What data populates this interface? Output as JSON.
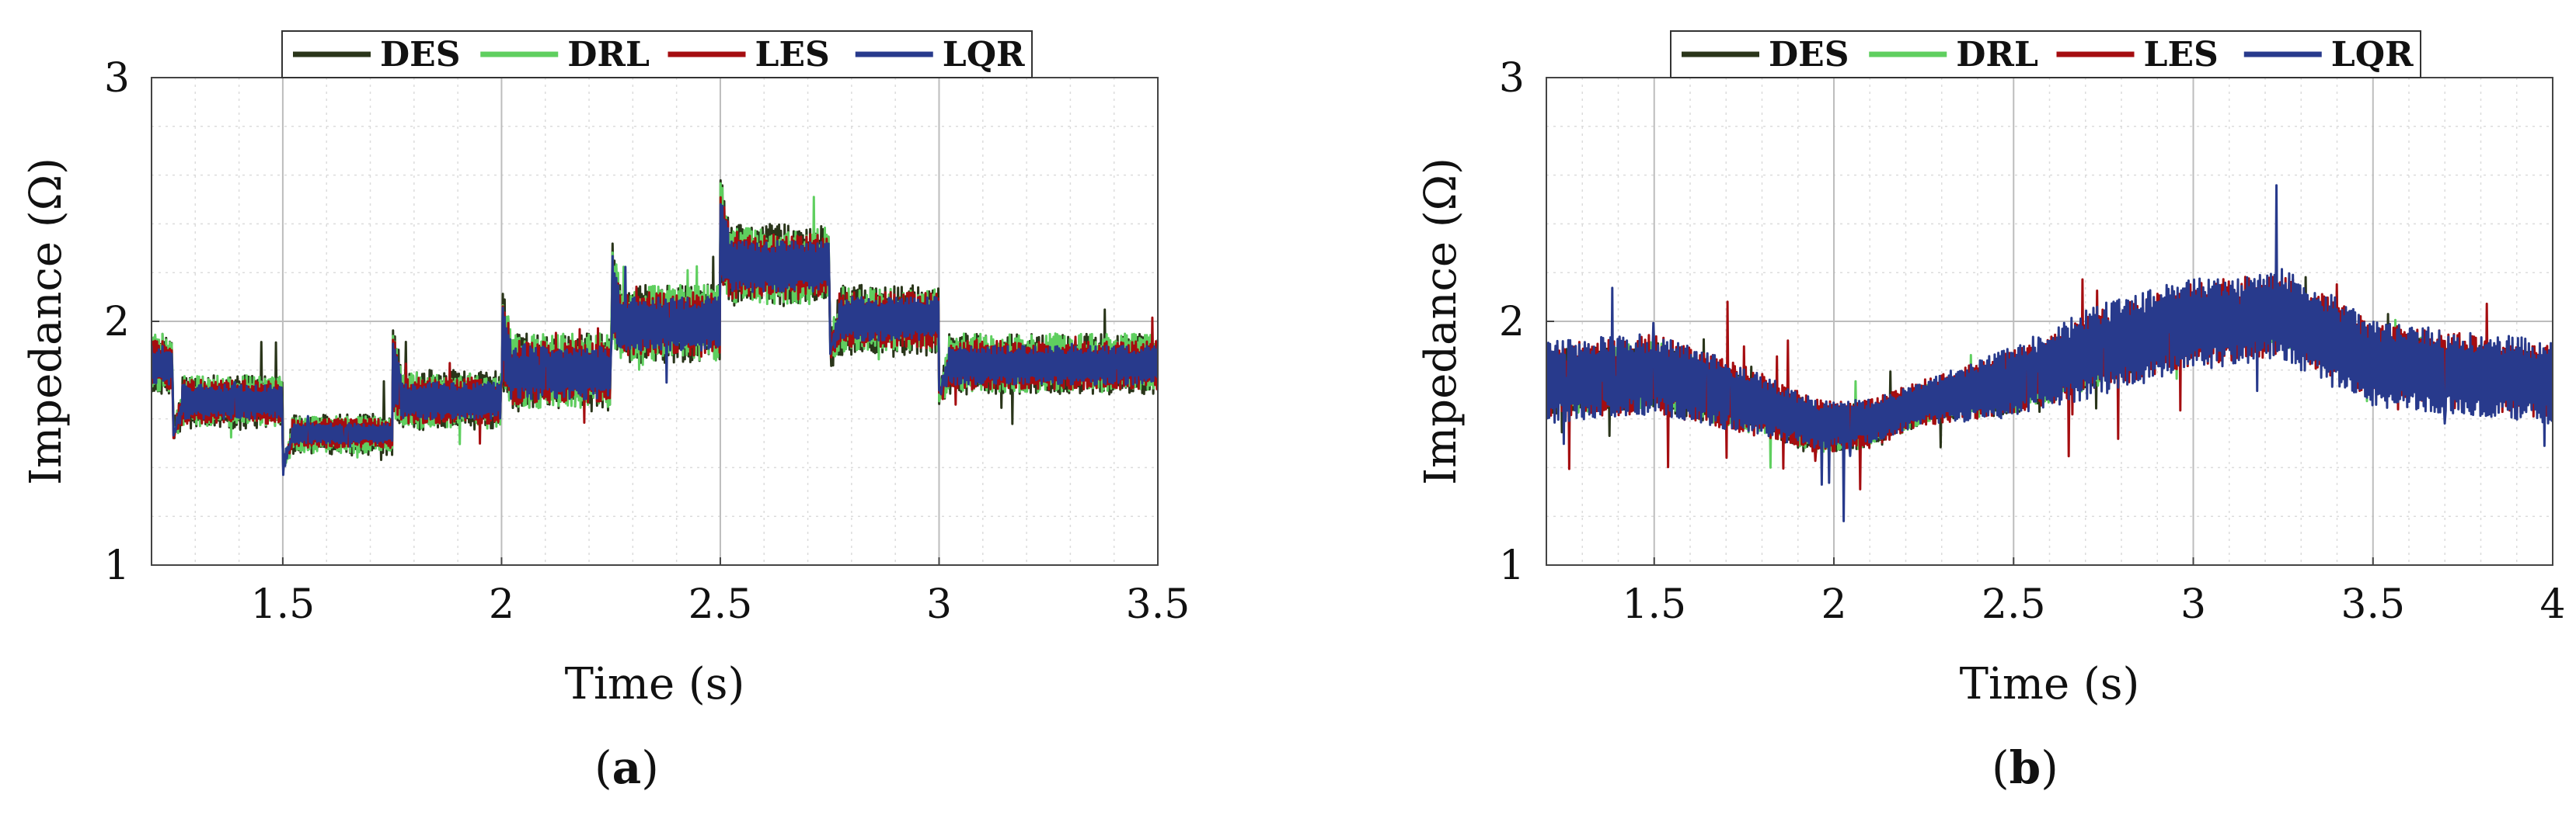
{
  "colors": {
    "DES": "#2a351a",
    "DRL": "#5fcf5f",
    "LES": "#a50d10",
    "LQR": "#283a8c",
    "grid_major": "#bdbdbd",
    "grid_minor": "#dcdcdc"
  },
  "captions": [
    "a",
    "b"
  ],
  "chart_data": [
    {
      "type": "line",
      "panel": "a",
      "xlabel": "Time (s)",
      "ylabel": "Impedance (Ω)",
      "xlim": [
        1.2,
        3.5
      ],
      "ylim": [
        1,
        3
      ],
      "xticks": [
        1.5,
        2,
        2.5,
        3,
        3.5
      ],
      "xtick_labels": [
        "1.5",
        "2",
        "2.5",
        "3",
        "3.5"
      ],
      "yticks": [
        1,
        2,
        3
      ],
      "ytick_labels": [
        "1",
        "2",
        "3"
      ],
      "grid": true,
      "minor_grid": true,
      "legend": {
        "placement": "top-center",
        "orientation": "horizontal",
        "entries": [
          "DES",
          "DRL",
          "LES",
          "LQR"
        ]
      },
      "profile": {
        "x": [
          1.2,
          1.25,
          1.5,
          1.75,
          2.0,
          2.25,
          2.5,
          2.75,
          3.0,
          3.5
        ],
        "low": [
          1.72,
          1.58,
          1.47,
          1.56,
          1.65,
          1.85,
          2.07,
          1.88,
          1.71,
          1.71
        ],
        "high": [
          1.93,
          1.76,
          1.6,
          1.78,
          1.93,
          2.13,
          2.38,
          2.13,
          1.93,
          1.93
        ]
      },
      "series": [
        {
          "name": "DES",
          "low": [
            1.7,
            1.56,
            1.45,
            1.55,
            1.63,
            1.83,
            2.06,
            1.86,
            1.7,
            1.7
          ],
          "high": [
            1.95,
            1.78,
            1.62,
            1.8,
            1.95,
            2.15,
            2.4,
            2.15,
            1.95,
            1.95
          ],
          "spike": 0.18,
          "noise": 0.6
        },
        {
          "name": "DRL",
          "low": [
            1.71,
            1.57,
            1.46,
            1.56,
            1.64,
            1.84,
            2.07,
            1.87,
            1.71,
            1.71
          ],
          "high": [
            1.95,
            1.78,
            1.61,
            1.79,
            1.95,
            2.15,
            2.39,
            2.14,
            1.95,
            1.95
          ],
          "spike": 0.15,
          "noise": 0.6
        },
        {
          "name": "LES",
          "low": [
            1.72,
            1.58,
            1.48,
            1.58,
            1.66,
            1.86,
            2.09,
            1.89,
            1.72,
            1.72
          ],
          "high": [
            1.92,
            1.76,
            1.6,
            1.77,
            1.92,
            2.12,
            2.36,
            2.12,
            1.92,
            1.92
          ],
          "spike": 0.12,
          "noise": 0.6
        },
        {
          "name": "LQR",
          "low": [
            1.74,
            1.6,
            1.5,
            1.6,
            1.68,
            1.88,
            2.12,
            1.92,
            1.74,
            1.74
          ],
          "high": [
            1.9,
            1.74,
            1.58,
            1.75,
            1.9,
            2.1,
            2.33,
            2.1,
            1.9,
            1.9
          ],
          "spike": 0.14,
          "noise": 0.55
        }
      ]
    },
    {
      "type": "line",
      "panel": "b",
      "xlabel": "Time (s)",
      "ylabel": "Impedance (Ω)",
      "xlim": [
        1.2,
        4
      ],
      "ylim": [
        1,
        3
      ],
      "xticks": [
        1.5,
        2,
        2.5,
        3,
        3.5,
        4
      ],
      "xtick_labels": [
        "1.5",
        "2",
        "2.5",
        "3",
        "3.5",
        "4"
      ],
      "yticks": [
        1,
        2,
        3
      ],
      "ytick_labels": [
        "1",
        "2",
        "3"
      ],
      "grid": true,
      "minor_grid": true,
      "legend": {
        "placement": "top-center",
        "orientation": "horizontal",
        "entries": [
          "DES",
          "DRL",
          "LES",
          "LQR"
        ]
      },
      "series": [
        {
          "name": "DES",
          "x": [
            1.2,
            1.5,
            1.75,
            1.95,
            2.1,
            2.25,
            2.5,
            2.75,
            3.0,
            3.25,
            3.35,
            3.5,
            4.0
          ],
          "low": [
            1.62,
            1.64,
            1.55,
            1.45,
            1.48,
            1.58,
            1.62,
            1.74,
            1.9,
            1.92,
            1.84,
            1.72,
            1.64
          ],
          "high": [
            1.88,
            1.92,
            1.78,
            1.66,
            1.66,
            1.74,
            1.85,
            1.98,
            2.1,
            2.12,
            2.05,
            1.96,
            1.86
          ],
          "spike": 0.14
        },
        {
          "name": "DRL",
          "x": [
            1.2,
            1.5,
            1.75,
            1.95,
            2.1,
            2.25,
            2.5,
            2.75,
            3.0,
            3.25,
            3.35,
            3.5,
            4.0
          ],
          "low": [
            1.62,
            1.64,
            1.55,
            1.46,
            1.48,
            1.58,
            1.62,
            1.74,
            1.88,
            1.9,
            1.84,
            1.72,
            1.64
          ],
          "high": [
            1.88,
            1.92,
            1.78,
            1.66,
            1.66,
            1.74,
            1.85,
            1.98,
            2.08,
            2.1,
            2.05,
            1.96,
            1.86
          ],
          "spike": 0.14
        },
        {
          "name": "LES",
          "x": [
            1.2,
            1.5,
            1.75,
            1.95,
            2.1,
            2.25,
            2.5,
            2.75,
            3.0,
            3.25,
            3.35,
            3.5,
            4.0
          ],
          "low": [
            1.6,
            1.62,
            1.54,
            1.46,
            1.48,
            1.57,
            1.62,
            1.72,
            1.82,
            1.86,
            1.8,
            1.68,
            1.6
          ],
          "high": [
            1.9,
            1.95,
            1.82,
            1.68,
            1.68,
            1.76,
            1.88,
            2.05,
            2.16,
            2.2,
            2.12,
            2.0,
            1.9
          ],
          "spike": 0.26
        },
        {
          "name": "LQR",
          "x": [
            1.2,
            1.5,
            1.75,
            1.95,
            2.1,
            2.25,
            2.5,
            2.75,
            3.0,
            3.25,
            3.35,
            3.5,
            4.0
          ],
          "low": [
            1.58,
            1.62,
            1.54,
            1.48,
            1.5,
            1.58,
            1.6,
            1.7,
            1.8,
            1.84,
            1.76,
            1.64,
            1.58
          ],
          "high": [
            1.92,
            1.95,
            1.82,
            1.68,
            1.68,
            1.76,
            1.9,
            2.08,
            2.18,
            2.22,
            2.14,
            2.0,
            1.92
          ],
          "spike": 0.42
        }
      ]
    }
  ]
}
